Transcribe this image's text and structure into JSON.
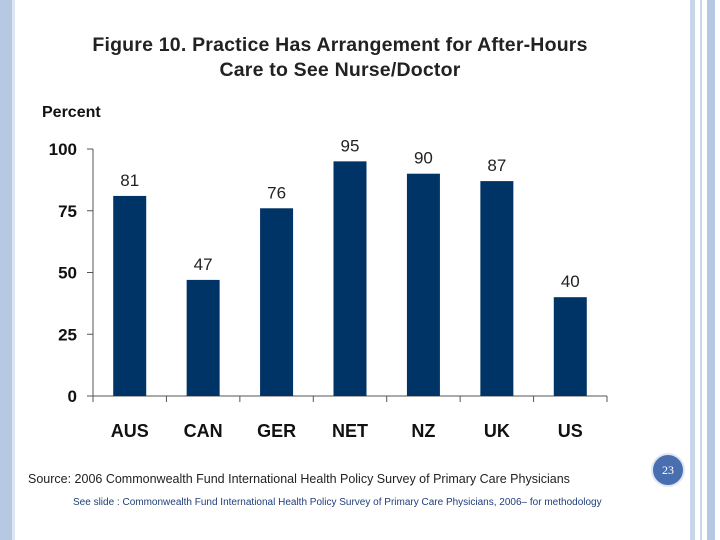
{
  "slide": {
    "page_number": "23",
    "source": "Source: 2006 Commonwealth Fund International Health Policy Survey of Primary Care Physicians",
    "note": "See slide : Commonwealth Fund International Health Policy Survey of Primary Care Physicians, 2006– for methodology"
  },
  "chart_data": {
    "type": "bar",
    "title": "Figure 10. Practice Has Arrangement for After-Hours Care to See Nurse/Doctor",
    "ylabel": "Percent",
    "xlabel": "",
    "categories": [
      "AUS",
      "CAN",
      "GER",
      "NET",
      "NZ",
      "UK",
      "US"
    ],
    "values": [
      81,
      47,
      76,
      95,
      90,
      87,
      40
    ],
    "ylim": [
      0,
      100
    ],
    "yticks": [
      0,
      25,
      50,
      75,
      100
    ],
    "grid": false,
    "bar_color": "#003366"
  }
}
